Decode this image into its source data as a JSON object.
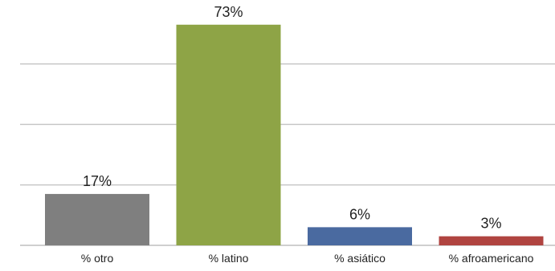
{
  "chart_data": {
    "type": "bar",
    "categories": [
      "% otro",
      "% latino",
      "% asiático",
      "% afroamericano"
    ],
    "values": [
      17,
      73,
      6,
      3
    ],
    "data_labels": [
      "17%",
      "73%",
      "6%",
      "3%"
    ],
    "colors": [
      "#7f7f7f",
      "#8ea446",
      "#4a6aa0",
      "#b04440"
    ],
    "ylim": [
      0,
      80
    ],
    "gridlines": [
      0,
      20,
      40,
      60
    ],
    "grid": true,
    "legend": "none",
    "title": "",
    "xlabel": "",
    "ylabel": ""
  }
}
